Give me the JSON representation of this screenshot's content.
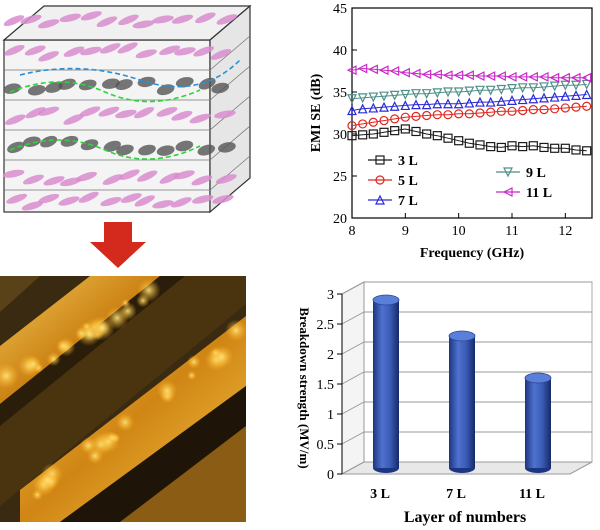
{
  "colors": {
    "arrow": "#d42a1e",
    "series_3L": "#1a1a1a",
    "series_5L": "#e0261f",
    "series_7L": "#2a2ad8",
    "series_9L": "#4f8f87",
    "series_11L": "#c829c8",
    "bar": "#3b5cb8"
  },
  "chart_data": [
    {
      "type": "line",
      "ylabel": "EMI SE (dB)",
      "xlabel": "Frequency (GHz)",
      "xlim": [
        8,
        12.5
      ],
      "ylim": [
        20,
        45
      ],
      "xticks": [
        "8",
        "9",
        "10",
        "11",
        "12"
      ],
      "yticks": [
        "20",
        "25",
        "30",
        "35",
        "40",
        "45"
      ],
      "grid": false,
      "legend_position": "bottom-left",
      "x": [
        8.0,
        8.2,
        8.4,
        8.6,
        8.8,
        9.0,
        9.2,
        9.4,
        9.6,
        9.8,
        10.0,
        10.2,
        10.4,
        10.6,
        10.8,
        11.0,
        11.2,
        11.4,
        11.6,
        11.8,
        12.0,
        12.2,
        12.4
      ],
      "series": [
        {
          "name": "3 L",
          "marker": "square",
          "values": [
            29.8,
            29.9,
            30.0,
            30.2,
            30.4,
            30.6,
            30.3,
            30.0,
            29.8,
            29.5,
            29.2,
            28.9,
            28.7,
            28.5,
            28.4,
            28.6,
            28.5,
            28.6,
            28.4,
            28.3,
            28.3,
            28.1,
            28.0
          ]
        },
        {
          "name": "5 L",
          "marker": "circle",
          "values": [
            31.0,
            31.2,
            31.4,
            31.6,
            31.8,
            32.0,
            32.1,
            32.2,
            32.3,
            32.3,
            32.4,
            32.4,
            32.5,
            32.6,
            32.7,
            32.7,
            32.8,
            32.9,
            32.9,
            33.0,
            33.1,
            33.2,
            33.3
          ]
        },
        {
          "name": "7 L",
          "marker": "triangle-up",
          "values": [
            32.8,
            33.0,
            33.1,
            33.2,
            33.3,
            33.4,
            33.5,
            33.5,
            33.6,
            33.6,
            33.6,
            33.7,
            33.8,
            33.8,
            33.9,
            34.0,
            34.1,
            34.2,
            34.3,
            34.4,
            34.5,
            34.6,
            34.7
          ]
        },
        {
          "name": "9 L",
          "marker": "triangle-down",
          "values": [
            34.2,
            34.3,
            34.4,
            34.5,
            34.6,
            34.7,
            34.8,
            34.8,
            34.9,
            35.0,
            35.0,
            35.1,
            35.2,
            35.2,
            35.3,
            35.4,
            35.5,
            35.5,
            35.6,
            35.7,
            35.8,
            35.8,
            35.9
          ]
        },
        {
          "name": "11 L",
          "marker": "triangle-left",
          "values": [
            37.6,
            37.8,
            37.7,
            37.6,
            37.5,
            37.3,
            37.2,
            37.1,
            37.1,
            37.0,
            37.0,
            37.0,
            36.9,
            36.9,
            36.9,
            36.8,
            36.8,
            36.8,
            36.8,
            36.7,
            36.7,
            36.7,
            36.7
          ]
        }
      ]
    },
    {
      "type": "bar",
      "style": "3d-cylinder",
      "ylabel": "Breakdown strength (MV/m)",
      "xlabel": "Layer of numbers",
      "categories": [
        "3 L",
        "7 L",
        "11 L"
      ],
      "values": [
        2.8,
        2.2,
        1.5
      ],
      "ylim": [
        0,
        3
      ],
      "yticks": [
        "0",
        "0.5",
        "1",
        "1.5",
        "2",
        "2.5",
        "3"
      ],
      "grid": true
    }
  ]
}
